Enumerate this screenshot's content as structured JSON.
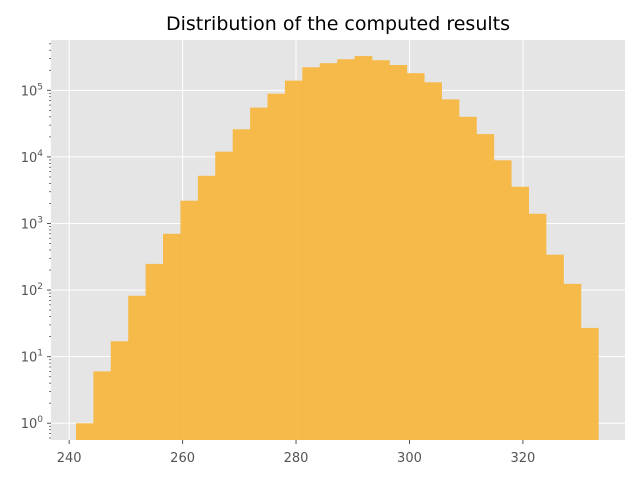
{
  "chart_data": {
    "type": "bar",
    "subtype": "histogram",
    "title": "Distribution of the computed results",
    "xlabel": "",
    "ylabel": "",
    "yscale": "log",
    "xlim": [
      236.8,
      338.0
    ],
    "ylim": [
      0.56,
      570000
    ],
    "grid": true,
    "bar_color": "#F7B538",
    "background_color": "#E5E5E5",
    "x_ticks": [
      "240",
      "260",
      "280",
      "300",
      "320"
    ],
    "x_tick_values": [
      240,
      260,
      280,
      300,
      320
    ],
    "y_ticks": [
      {
        "base": "10",
        "exp": "0",
        "value": 1
      },
      {
        "base": "10",
        "exp": "1",
        "value": 10
      },
      {
        "base": "10",
        "exp": "2",
        "value": 100
      },
      {
        "base": "10",
        "exp": "3",
        "value": 1000
      },
      {
        "base": "10",
        "exp": "4",
        "value": 10000
      },
      {
        "base": "10",
        "exp": "5",
        "value": 100000
      }
    ],
    "bin_start": 241.2,
    "bin_width": 3.07,
    "values": [
      1,
      6,
      17,
      82,
      247,
      700,
      2200,
      5200,
      12000,
      26000,
      55000,
      89000,
      140000,
      222000,
      256000,
      293000,
      327000,
      283000,
      240000,
      181000,
      132000,
      73000,
      40000,
      22000,
      8900,
      3560,
      1400,
      340,
      124,
      27
    ]
  }
}
